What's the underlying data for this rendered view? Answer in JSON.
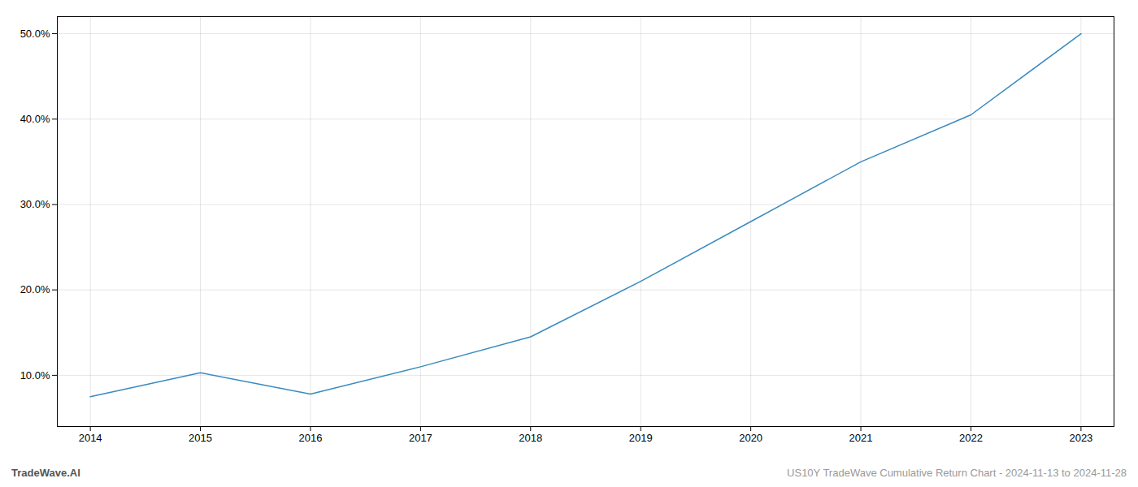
{
  "chart_data": {
    "type": "line",
    "title": "US10Y TradeWave Cumulative Return Chart - 2024-11-13 to 2024-11-28",
    "annotations": [
      "TradeWave.AI"
    ],
    "x": [
      2014,
      2015,
      2016,
      2017,
      2018,
      2019,
      2020,
      2021,
      2022,
      2023
    ],
    "values": [
      7.5,
      10.3,
      7.8,
      11.0,
      14.5,
      21.0,
      28.0,
      35.0,
      40.5,
      50.0
    ],
    "color": "#3a8abf",
    "xlim": [
      2013.7,
      2023.3
    ],
    "xticks": [
      2014,
      2015,
      2016,
      2017,
      2018,
      2019,
      2020,
      2021,
      2022,
      2023
    ],
    "ylim": [
      4.0,
      52.0
    ],
    "yticks": [
      {
        "value": 10.0,
        "label": "10.0%"
      },
      {
        "value": 20.0,
        "label": "20.0%"
      },
      {
        "value": 30.0,
        "label": "30.0%"
      },
      {
        "value": 40.0,
        "label": "40.0%"
      },
      {
        "value": 50.0,
        "label": "50.0%"
      }
    ],
    "grid": true
  }
}
